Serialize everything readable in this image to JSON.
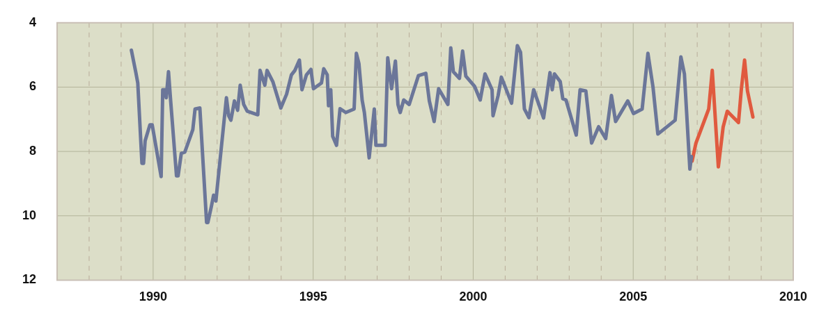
{
  "chart_data": {
    "type": "line",
    "xlim": [
      1987,
      2010
    ],
    "ylim": [
      12,
      4
    ],
    "xticks": [
      {
        "value": 1988,
        "label": null
      },
      {
        "value": 1989,
        "label": null
      },
      1990,
      {
        "value": 1991,
        "label": null
      },
      {
        "value": 1992,
        "label": null
      },
      {
        "value": 1993,
        "label": null
      },
      {
        "value": 1994,
        "label": null
      },
      1995,
      {
        "value": 1996,
        "label": null
      },
      {
        "value": 1997,
        "label": null
      },
      {
        "value": 1998,
        "label": null
      },
      {
        "value": 1999,
        "label": null
      },
      2000,
      {
        "value": 2001,
        "label": null
      },
      {
        "value": 2002,
        "label": null
      },
      {
        "value": 2003,
        "label": null
      },
      {
        "value": 2004,
        "label": null
      },
      2005,
      {
        "value": 2006,
        "label": null
      },
      {
        "value": 2007,
        "label": null
      },
      {
        "value": 2008,
        "label": null
      },
      {
        "value": 2009,
        "label": null
      },
      2010
    ],
    "yticks": [
      4,
      6,
      8,
      10,
      12
    ],
    "grid": true,
    "legend": false,
    "marker": "none",
    "line_style": "solid",
    "series": [
      {
        "color": "#6b7699",
        "x": [
          1989.32,
          1989.46,
          1989.52,
          1989.65,
          1989.7,
          1989.75,
          1989.9,
          1989.97,
          1990.25,
          1990.3,
          1990.37,
          1990.41,
          1990.48,
          1990.54,
          1990.73,
          1990.78,
          1990.88,
          1990.99,
          1991.24,
          1991.31,
          1991.46,
          1991.67,
          1991.71,
          1991.82,
          1991.89,
          1991.96,
          1992.29,
          1992.36,
          1992.43,
          1992.54,
          1992.64,
          1992.72,
          1992.83,
          1992.94,
          1993.27,
          1993.34,
          1993.49,
          1993.56,
          1993.74,
          1993.99,
          1994.17,
          1994.32,
          1994.43,
          1994.57,
          1994.65,
          1994.79,
          1994.93,
          1995.01,
          1995.26,
          1995.33,
          1995.44,
          1995.48,
          1995.55,
          1995.61,
          1995.73,
          1995.84,
          1996.02,
          1996.28,
          1996.35,
          1996.43,
          1996.53,
          1996.6,
          1996.75,
          1996.91,
          1996.96,
          1997.25,
          1997.33,
          1997.45,
          1997.57,
          1997.65,
          1997.72,
          1997.83,
          1998,
          1998.29,
          1998.52,
          1998.63,
          1998.78,
          1998.92,
          1999.21,
          1999.3,
          1999.38,
          1999.57,
          1999.67,
          1999.77,
          2000.04,
          2000.22,
          2000.37,
          2000.59,
          2000.62,
          2000.78,
          2000.88,
          2001.2,
          2001.38,
          2001.48,
          2001.6,
          2001.74,
          2001.89,
          2002.2,
          2002.4,
          2002.47,
          2002.54,
          2002.72,
          2002.8,
          2002.9,
          2003.22,
          2003.34,
          2003.52,
          2003.7,
          2003.92,
          2004.14,
          2004.32,
          2004.45,
          2004.83,
          2005.01,
          2005.28,
          2005.46,
          2005.62,
          2005.77,
          2006.31,
          2006.49,
          2006.6,
          2006.77,
          2006.82
        ],
        "values": [
          4.85,
          5.55,
          5.87,
          8.37,
          8.37,
          7.67,
          7.17,
          7.17,
          8.78,
          6.08,
          6.08,
          6.33,
          5.52,
          6.33,
          8.76,
          8.76,
          8.06,
          8.02,
          7.32,
          6.68,
          6.65,
          10.21,
          10.21,
          9.71,
          9.36,
          9.54,
          6.33,
          6.89,
          7.03,
          6.43,
          6.72,
          5.94,
          6.54,
          6.75,
          6.86,
          5.48,
          5.94,
          5.48,
          5.83,
          6.65,
          6.22,
          5.62,
          5.48,
          5.16,
          6.08,
          5.62,
          5.45,
          6.05,
          5.87,
          5.43,
          5.62,
          6.58,
          6.08,
          7.53,
          7.81,
          6.67,
          6.79,
          6.68,
          4.95,
          5.27,
          6.4,
          6.79,
          8.2,
          6.68,
          7.81,
          7.81,
          5.09,
          6.05,
          5.19,
          6.54,
          6.79,
          6.4,
          6.54,
          5.64,
          5.57,
          6.43,
          7.07,
          6.05,
          6.54,
          4.78,
          5.52,
          5.73,
          4.88,
          5.66,
          5.97,
          6.4,
          5.59,
          6.08,
          6.89,
          6.26,
          5.69,
          6.5,
          4.71,
          4.92,
          6.68,
          6.95,
          6.08,
          6.96,
          5.55,
          6.08,
          5.59,
          5.83,
          6.36,
          6.4,
          7.49,
          6.08,
          6.12,
          7.74,
          7.23,
          7.6,
          6.26,
          7.07,
          6.43,
          6.82,
          6.68,
          4.95,
          6.01,
          7.46,
          7.03,
          5.06,
          5.59,
          8.55,
          8.16
        ]
      },
      {
        "color": "#e05a3f",
        "x": [
          2006.84,
          2006.96,
          2007.36,
          2007.47,
          2007.66,
          2007.81,
          2007.94,
          2008.29,
          2008.38,
          2008.48,
          2008.57,
          2008.74
        ],
        "values": [
          8.3,
          7.74,
          6.68,
          5.48,
          8.48,
          7.24,
          6.75,
          7.1,
          6.05,
          5.16,
          6.12,
          6.93
        ]
      }
    ]
  }
}
